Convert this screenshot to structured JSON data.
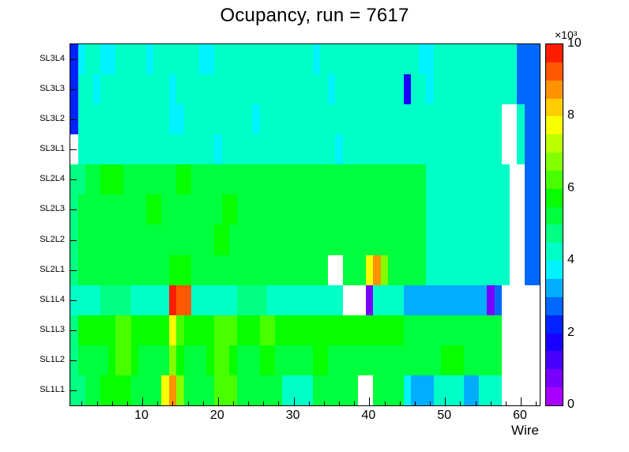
{
  "chart_data": {
    "type": "heatmap",
    "title": "Ocupancy, run = 7617",
    "xlabel": "Wire",
    "x_range": [
      0.5,
      62.5
    ],
    "n_wires": 62,
    "x_major_ticks": [
      10,
      20,
      30,
      40,
      50,
      60
    ],
    "x_minor_step": 2,
    "values_scale": "×10³",
    "colorbar": {
      "min": 0,
      "max": 10,
      "ticks": [
        0,
        2,
        4,
        6,
        8,
        10
      ],
      "bands": 20,
      "exponent_label": "×10³"
    },
    "rows": [
      {
        "label": "SL3L4",
        "values": [
          2,
          3.5,
          4,
          4,
          3.5,
          3.5,
          4,
          4,
          4,
          4,
          3.5,
          4,
          4,
          4,
          4,
          4,
          4,
          3.5,
          3.5,
          4,
          4,
          4,
          4,
          4,
          4,
          4,
          4,
          4,
          4,
          4,
          4,
          4,
          3.5,
          4,
          4,
          4,
          4,
          4,
          4,
          4,
          4,
          4,
          4,
          4,
          4,
          4,
          3.5,
          3.5,
          4,
          4,
          4,
          4,
          4,
          4,
          4,
          4,
          4,
          4,
          4,
          2.5,
          2.5,
          2.5
        ]
      },
      {
        "label": "SL3L3",
        "values": [
          2,
          4,
          4,
          3.5,
          4,
          4,
          4,
          4,
          4,
          4,
          4,
          4,
          4,
          3.5,
          4,
          4,
          4,
          4,
          4,
          4,
          4,
          4,
          4,
          4,
          4,
          4,
          4,
          4,
          4,
          4,
          4,
          4,
          4,
          4,
          3.5,
          4,
          4,
          4,
          4,
          4,
          4,
          4,
          4,
          4,
          1.5,
          4,
          4,
          3.5,
          4,
          4,
          4,
          4,
          4,
          4,
          4,
          4,
          4,
          4,
          4,
          2.5,
          2.5,
          2.5
        ]
      },
      {
        "label": "SL3L2",
        "values": [
          2,
          4,
          4,
          4,
          4,
          4,
          4,
          4,
          4,
          4,
          4,
          4,
          4,
          3.5,
          3.5,
          4,
          4,
          4,
          4,
          4,
          4,
          4,
          4,
          4,
          3.5,
          4,
          4,
          4,
          4,
          4,
          4,
          4,
          4,
          4,
          4,
          4,
          4,
          4,
          4,
          4,
          4,
          4,
          4,
          4,
          4,
          4,
          4,
          4,
          4,
          4,
          4,
          4,
          4,
          4,
          4,
          4,
          4,
          null,
          null,
          4,
          2.5,
          2.5
        ]
      },
      {
        "label": "SL3L1",
        "values": [
          null,
          4,
          4,
          4,
          4,
          4,
          4,
          4,
          4,
          4,
          4,
          4,
          4,
          4,
          4,
          4,
          4,
          4,
          4,
          3.5,
          4,
          4,
          4,
          4,
          4,
          4,
          4,
          4,
          4,
          4,
          4,
          4,
          4,
          4,
          4,
          3.5,
          4,
          4,
          4,
          4,
          4,
          4,
          4,
          4,
          4,
          4,
          4,
          4,
          4,
          4,
          4,
          4,
          4,
          4,
          4,
          4,
          4,
          null,
          null,
          4,
          2.5,
          2.5
        ]
      },
      {
        "label": "SL2L4",
        "values": [
          4.5,
          4.5,
          5,
          5,
          5.5,
          5.5,
          5.5,
          5,
          5,
          5,
          5,
          5,
          5,
          5,
          5.5,
          5.5,
          5,
          5,
          5,
          5,
          5,
          5,
          5,
          5,
          5,
          5,
          5,
          5,
          5,
          5,
          5,
          5,
          5,
          5,
          5,
          5,
          5,
          5,
          5,
          5,
          5,
          5,
          5,
          5,
          5,
          5,
          5,
          4,
          4,
          4,
          4,
          4,
          4,
          4,
          4,
          4,
          4,
          4,
          null,
          null,
          2.5,
          2.5
        ]
      },
      {
        "label": "SL2L3",
        "values": [
          4.5,
          5,
          5,
          5,
          5,
          5,
          5,
          5,
          5,
          5,
          5.5,
          5.5,
          5,
          5,
          5,
          5,
          5,
          5,
          5,
          5,
          5.5,
          5.5,
          5,
          5,
          5,
          5,
          5,
          5,
          5,
          5,
          5,
          5,
          5,
          5,
          5,
          5,
          5,
          5,
          5,
          5,
          5,
          5,
          5,
          5,
          5,
          5,
          5,
          4,
          4,
          4,
          4,
          4,
          4,
          4,
          4,
          4,
          4,
          4,
          null,
          null,
          2.5,
          2.5
        ]
      },
      {
        "label": "SL2L2",
        "values": [
          4.5,
          5,
          5,
          5,
          5,
          5,
          5,
          5,
          5,
          5,
          5,
          5,
          5,
          5,
          5,
          5,
          5,
          5,
          5,
          5.5,
          5.5,
          5,
          5,
          5,
          5,
          5,
          5,
          5,
          5,
          5,
          5,
          5,
          5,
          5,
          5,
          5,
          5,
          5,
          5,
          5,
          5,
          5,
          5,
          5,
          5,
          5,
          5,
          4,
          4,
          4,
          4,
          4,
          4,
          4,
          4,
          4,
          4,
          4,
          null,
          null,
          2.5,
          2.5
        ]
      },
      {
        "label": "SL2L1",
        "values": [
          4.5,
          5,
          5,
          5,
          5,
          5,
          5,
          5,
          5,
          5,
          5,
          5,
          5,
          5.5,
          5.5,
          5.5,
          5,
          5,
          5,
          5,
          5,
          5,
          5,
          5,
          5,
          5,
          5,
          5,
          5,
          5,
          5,
          5,
          5,
          5,
          null,
          null,
          5,
          5,
          5,
          7.5,
          8.5,
          6.5,
          5,
          5,
          5,
          5,
          5,
          4,
          4,
          4,
          4,
          4,
          4,
          4,
          4,
          4,
          4,
          4,
          null,
          null,
          2.5,
          2.5
        ]
      },
      {
        "label": "SL1L4",
        "values": [
          4,
          4,
          4,
          4,
          4.5,
          4.5,
          4.5,
          4.5,
          4,
          4,
          4,
          4,
          4,
          10,
          9,
          9,
          4,
          4,
          4,
          4,
          4,
          4,
          4.5,
          4.5,
          4.5,
          4.5,
          4,
          4,
          4,
          4,
          4,
          4,
          4,
          4,
          4,
          4,
          null,
          null,
          null,
          0.5,
          4,
          4,
          4,
          4,
          3,
          3,
          3,
          3,
          3,
          3,
          3,
          3,
          3,
          3,
          3,
          0.5,
          2.5,
          null,
          null,
          null,
          null,
          null
        ]
      },
      {
        "label": "SL1L3",
        "values": [
          4.5,
          5.5,
          5.5,
          5.5,
          5.5,
          5.5,
          6,
          6,
          5.5,
          5.5,
          5.5,
          5.5,
          5.5,
          7.5,
          6,
          5.5,
          5.5,
          5.5,
          5.5,
          6,
          6,
          6,
          5.5,
          5.5,
          5.5,
          6,
          6,
          5.5,
          5.5,
          5.5,
          5.5,
          5.5,
          5.5,
          5.5,
          5.5,
          5.5,
          5.5,
          5.5,
          5.5,
          5.5,
          5.5,
          5.5,
          5.5,
          5.5,
          5,
          5,
          5,
          5,
          5,
          5,
          5,
          5,
          5,
          5,
          5,
          5,
          5,
          null,
          null,
          null,
          null,
          null
        ]
      },
      {
        "label": "SL1L2",
        "values": [
          4.5,
          5,
          5,
          5,
          5,
          5.5,
          6,
          6,
          5.5,
          5,
          5,
          5,
          5,
          6.5,
          5.5,
          5,
          5,
          5,
          5.5,
          6,
          6,
          5.5,
          5,
          5,
          5,
          5.5,
          5.5,
          5,
          5,
          5,
          5,
          5,
          5.5,
          5.5,
          5,
          5,
          5,
          5,
          5,
          5,
          5,
          5,
          5,
          5,
          5,
          5,
          5,
          5,
          5,
          5.5,
          5.5,
          5.5,
          5,
          5,
          5,
          5,
          5,
          null,
          null,
          null,
          null,
          null
        ]
      },
      {
        "label": "SL1L1",
        "values": [
          4.5,
          4.5,
          5,
          5,
          5.5,
          5.5,
          5.5,
          5.5,
          5,
          5,
          5,
          5,
          7.5,
          8.5,
          6.5,
          5,
          5,
          5,
          5,
          6,
          6,
          6,
          5,
          5,
          5,
          5,
          5,
          5,
          4,
          4,
          4,
          4,
          5,
          5,
          5,
          5,
          5,
          5,
          null,
          null,
          5,
          5,
          5,
          5,
          3.5,
          3,
          3,
          3,
          4,
          4,
          4,
          4,
          3,
          3,
          4,
          4,
          4,
          null,
          null,
          null,
          null,
          null
        ]
      }
    ]
  }
}
